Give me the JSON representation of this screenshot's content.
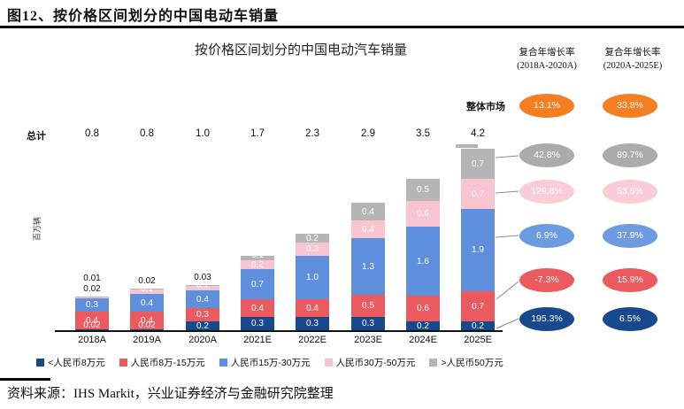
{
  "figure": {
    "title": "图12、按价格区间划分的中国电动车销量",
    "source": "资料来源：IHS Markit，兴业证券经济与金融研究院整理"
  },
  "chart_data": {
    "type": "bar",
    "stacked": true,
    "title": "按价格区间划分的中国电动汽车销量",
    "ylabel": "百万辆",
    "total_label": "总计",
    "categories": [
      "2018A",
      "2019A",
      "2020A",
      "2021E",
      "2022E",
      "2023E",
      "2024E",
      "2025E"
    ],
    "totals": [
      "0.8",
      "0.8",
      "1.0",
      "1.7",
      "2.3",
      "2.9",
      "3.5",
      "4.2"
    ],
    "ylim": [
      0,
      4.2
    ],
    "grid": false,
    "series": [
      {
        "name": "<人民币8万元",
        "color": "#17498c",
        "values": [
          0.02,
          0.02,
          0.2,
          0.3,
          0.3,
          0.3,
          0.2,
          0.2
        ],
        "labels": [
          "0.02",
          "0.02",
          "0.2",
          "0.3",
          "0.3",
          "0.3",
          "0.2",
          "0.2"
        ]
      },
      {
        "name": "人民币8万-15万元",
        "color": "#ea5a5e",
        "values": [
          0.4,
          0.4,
          0.3,
          0.4,
          0.4,
          0.5,
          0.6,
          0.7
        ],
        "labels": [
          "0.4",
          "0.4",
          "0.3",
          "0.4",
          "0.4",
          "0.5",
          "0.6",
          "0.7"
        ]
      },
      {
        "name": "人民币15万-30万元",
        "color": "#5d8fdc",
        "values": [
          0.3,
          0.4,
          0.4,
          0.7,
          1.0,
          1.3,
          1.6,
          1.9
        ],
        "labels": [
          "0.3",
          "0.4",
          "0.4",
          "0.7",
          "1.0",
          "1.3",
          "1.6",
          "1.9"
        ]
      },
      {
        "name": "人民币30万-50万元",
        "color": "#f8c4cf",
        "values": [
          0.02,
          0.1,
          0.1,
          0.2,
          0.3,
          0.4,
          0.6,
          0.7
        ],
        "labels": [
          "",
          "0.1",
          "0.1",
          "0.2",
          "0.3",
          "0.4",
          "0.6",
          "0.7"
        ]
      },
      {
        "name": ">人民币50万元",
        "color": "#b5b5b8",
        "values": [
          0.01,
          0.02,
          0.03,
          0.1,
          0.2,
          0.4,
          0.5,
          0.7
        ],
        "labels": [
          "",
          "",
          "",
          "0.1",
          "0.2",
          "0.4",
          "0.5",
          "0.7"
        ]
      }
    ],
    "above_labels": [
      [
        "0.01",
        "0.02"
      ],
      [
        "0.02"
      ],
      [
        "0.03"
      ],
      [],
      [],
      [],
      [],
      []
    ]
  },
  "cagr": {
    "columns": [
      {
        "title": "复合年增长率",
        "subtitle": "(2018A-2020A)"
      },
      {
        "title": "复合年增长率",
        "subtitle": "(2020A-2025E)"
      }
    ],
    "market_label": "整体市场",
    "rows": [
      {
        "segment": "整体市场",
        "color": "#f57e20",
        "v1": "13.1%",
        "v2": "33.8%"
      },
      {
        "segment": ">人民币50万元",
        "color": "#ababae",
        "v1": "42.8%",
        "v2": "89.7%"
      },
      {
        "segment": "人民币30万-50万元",
        "color": "#f9ccd6",
        "v1": "129.8%",
        "v2": "53.5%"
      },
      {
        "segment": "人民币15万-30万元",
        "color": "#6c9be0",
        "v1": "6.9%",
        "v2": "37.9%"
      },
      {
        "segment": "人民币8万-15万元",
        "color": "#ea5a5e",
        "v1": "-7.3%",
        "v2": "15.9%"
      },
      {
        "segment": "<人民币8万元",
        "color": "#17498c",
        "v1": "195.3%",
        "v2": "6.5%"
      }
    ]
  },
  "legend": [
    {
      "label": "<人民币8万元",
      "color": "#17498c"
    },
    {
      "label": "人民币8万-15万元",
      "color": "#ea5a5e"
    },
    {
      "label": "人民币15万-30万元",
      "color": "#5d8fdc"
    },
    {
      "label": "人民币30万-50万元",
      "color": "#f8c4cf"
    },
    {
      "label": ">人民币50万元",
      "color": "#b5b5b8"
    }
  ]
}
